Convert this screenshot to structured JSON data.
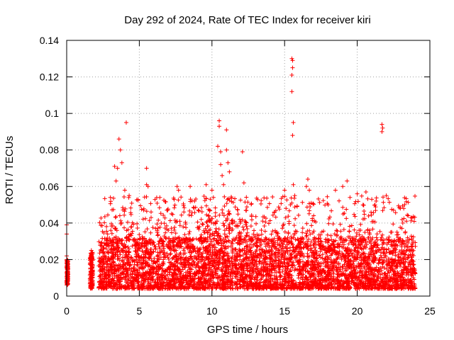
{
  "chart_data": {
    "type": "scatter",
    "title": "Day 292 of 2024, Rate Of TEC Index for receiver kiri",
    "xlabel": "GPS time / hours",
    "ylabel": "ROTI / TECUs",
    "xlim": [
      0,
      25
    ],
    "ylim": [
      0,
      0.14
    ],
    "x_ticks": [
      0,
      5,
      10,
      15,
      20,
      25
    ],
    "x_tick_labels": [
      "0",
      "5",
      "10",
      "15",
      "20",
      "25"
    ],
    "y_ticks": [
      0,
      0.02,
      0.04,
      0.06,
      0.08,
      0.1,
      0.12,
      0.14
    ],
    "y_tick_labels": [
      "0",
      "0.02",
      "0.04",
      "0.06",
      "0.08",
      "0.1",
      "0.12",
      "0.14"
    ],
    "grid": true,
    "marker": "+",
    "series": [
      {
        "name": "ROTI",
        "color": "#ff0000",
        "outliers": [
          {
            "x": 0.0,
            "y": 0.039
          },
          {
            "x": 0.0,
            "y": 0.034
          },
          {
            "x": 0.0,
            "y": 0.022
          },
          {
            "x": 0.0,
            "y": 0.018
          },
          {
            "x": 0.05,
            "y": 0.008
          },
          {
            "x": 1.7,
            "y": 0.025
          },
          {
            "x": 1.7,
            "y": 0.022
          },
          {
            "x": 3.3,
            "y": 0.071
          },
          {
            "x": 3.4,
            "y": 0.063
          },
          {
            "x": 3.5,
            "y": 0.07
          },
          {
            "x": 3.6,
            "y": 0.086
          },
          {
            "x": 3.7,
            "y": 0.08
          },
          {
            "x": 3.8,
            "y": 0.073
          },
          {
            "x": 4.0,
            "y": 0.058
          },
          {
            "x": 4.1,
            "y": 0.095
          },
          {
            "x": 4.3,
            "y": 0.055
          },
          {
            "x": 5.3,
            "y": 0.047
          },
          {
            "x": 5.5,
            "y": 0.061
          },
          {
            "x": 5.5,
            "y": 0.07
          },
          {
            "x": 5.6,
            "y": 0.06
          },
          {
            "x": 6.9,
            "y": 0.047
          },
          {
            "x": 7.6,
            "y": 0.06
          },
          {
            "x": 7.7,
            "y": 0.058
          },
          {
            "x": 8.5,
            "y": 0.06
          },
          {
            "x": 8.8,
            "y": 0.052
          },
          {
            "x": 9.6,
            "y": 0.061
          },
          {
            "x": 10.0,
            "y": 0.058
          },
          {
            "x": 10.1,
            "y": 0.054
          },
          {
            "x": 10.4,
            "y": 0.082
          },
          {
            "x": 10.5,
            "y": 0.096
          },
          {
            "x": 10.5,
            "y": 0.093
          },
          {
            "x": 10.6,
            "y": 0.079
          },
          {
            "x": 10.6,
            "y": 0.072
          },
          {
            "x": 10.7,
            "y": 0.066
          },
          {
            "x": 10.8,
            "y": 0.061
          },
          {
            "x": 11.0,
            "y": 0.091
          },
          {
            "x": 11.0,
            "y": 0.08
          },
          {
            "x": 11.1,
            "y": 0.073
          },
          {
            "x": 11.2,
            "y": 0.068
          },
          {
            "x": 12.1,
            "y": 0.079
          },
          {
            "x": 12.2,
            "y": 0.062
          },
          {
            "x": 14.3,
            "y": 0.046
          },
          {
            "x": 15.0,
            "y": 0.058
          },
          {
            "x": 15.1,
            "y": 0.048
          },
          {
            "x": 15.5,
            "y": 0.13
          },
          {
            "x": 15.55,
            "y": 0.129
          },
          {
            "x": 15.55,
            "y": 0.125
          },
          {
            "x": 15.5,
            "y": 0.121
          },
          {
            "x": 15.5,
            "y": 0.112
          },
          {
            "x": 15.6,
            "y": 0.095
          },
          {
            "x": 15.55,
            "y": 0.088
          },
          {
            "x": 15.6,
            "y": 0.061
          },
          {
            "x": 15.7,
            "y": 0.055
          },
          {
            "x": 15.4,
            "y": 0.05
          },
          {
            "x": 16.5,
            "y": 0.06
          },
          {
            "x": 16.6,
            "y": 0.064
          },
          {
            "x": 16.7,
            "y": 0.058
          },
          {
            "x": 17.0,
            "y": 0.044
          },
          {
            "x": 18.0,
            "y": 0.05
          },
          {
            "x": 18.5,
            "y": 0.058
          },
          {
            "x": 19.0,
            "y": 0.06
          },
          {
            "x": 19.3,
            "y": 0.063
          },
          {
            "x": 19.5,
            "y": 0.054
          },
          {
            "x": 20.0,
            "y": 0.056
          },
          {
            "x": 20.6,
            "y": 0.057
          },
          {
            "x": 21.0,
            "y": 0.053
          },
          {
            "x": 21.3,
            "y": 0.052
          },
          {
            "x": 21.7,
            "y": 0.094
          },
          {
            "x": 21.75,
            "y": 0.092
          },
          {
            "x": 21.7,
            "y": 0.09
          },
          {
            "x": 22.0,
            "y": 0.055
          },
          {
            "x": 22.5,
            "y": 0.047
          },
          {
            "x": 23.2,
            "y": 0.048
          },
          {
            "x": 23.5,
            "y": 0.044
          },
          {
            "x": 23.7,
            "y": 0.043
          }
        ],
        "dense_band": {
          "x_range": [
            2.2,
            24.0
          ],
          "y_range_typical": [
            0.004,
            0.035
          ],
          "description": "Dense cluster of ROTI values; median around 0.012-0.018 TECU/min"
        },
        "early_segments": [
          {
            "x_range": [
              0.0,
              0.1
            ],
            "y_range": [
              0.006,
              0.02
            ]
          },
          {
            "x_range": [
              1.6,
              1.8
            ],
            "y_range": [
              0.004,
              0.024
            ]
          }
        ]
      }
    ]
  }
}
